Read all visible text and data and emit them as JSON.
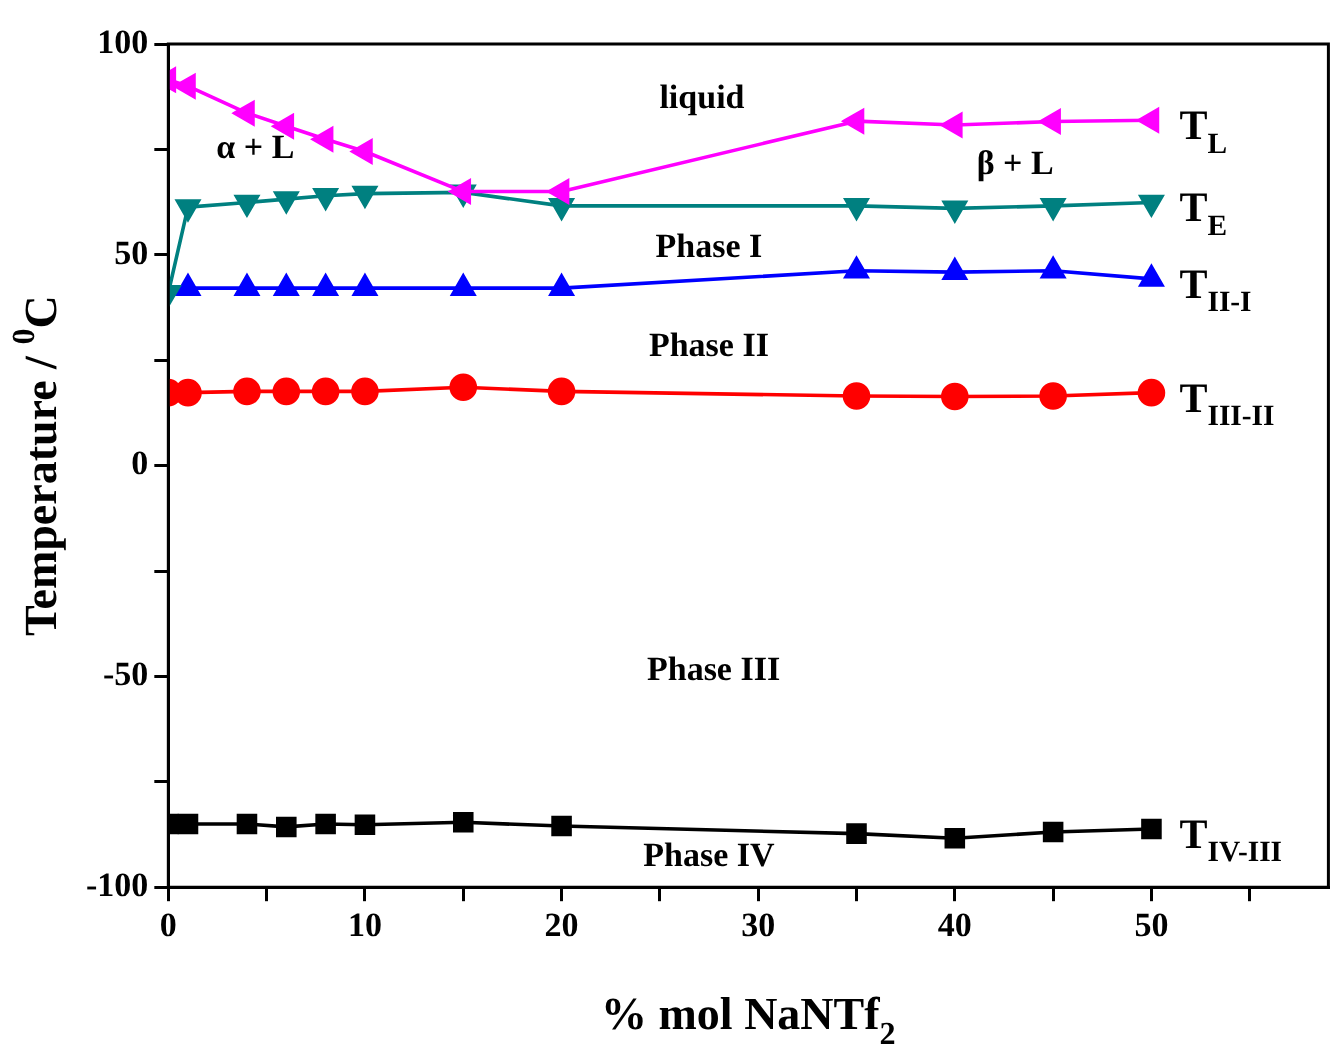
{
  "chart_data": {
    "type": "line",
    "xlabel": "% mol NaNTf$_{2}$",
    "ylabel": "Temperature / $^{0}$C",
    "xlim": [
      0,
      59
    ],
    "xticks": [
      0,
      {
        "value": 5,
        "label": null
      },
      10,
      {
        "value": 15,
        "label": null
      },
      20,
      {
        "value": 25,
        "label": null
      },
      30,
      {
        "value": 35,
        "label": null
      },
      40,
      {
        "value": 45,
        "label": null
      },
      50,
      {
        "value": 55,
        "label": null
      }
    ],
    "ylim": [
      -100,
      100
    ],
    "yticks": [
      -100,
      {
        "value": -75,
        "label": null
      },
      -50,
      {
        "value": -25,
        "label": null
      },
      0,
      {
        "value": 25,
        "label": null
      },
      50,
      {
        "value": 75,
        "label": null
      },
      100
    ],
    "grid": false,
    "legend": false,
    "series": [
      {
        "name": "T$_{L}$",
        "color": "#ff00ff",
        "marker": "triangle",
        "x": [
          0,
          1,
          4,
          6,
          8,
          10,
          15,
          20,
          35,
          40,
          45,
          50
        ],
        "values": [
          91.5,
          90,
          83.6,
          80.5,
          77.4,
          74.5,
          65,
          65,
          81.7,
          80.8,
          81.6,
          81.9
        ]
      },
      {
        "name": "T$_{E}$",
        "color": "#008080",
        "marker": "triangle",
        "x": [
          0,
          1,
          4,
          6,
          8,
          10,
          15,
          20,
          35,
          40,
          45,
          50
        ],
        "values": [
          41,
          61.3,
          62.4,
          63.2,
          64,
          64.5,
          64.8,
          61.6,
          61.6,
          61,
          61.6,
          62.4
        ]
      },
      {
        "name": "T$_{II-I}$",
        "color": "#0000ff",
        "marker": "triangle",
        "x": [
          1,
          4,
          6,
          8,
          10,
          15,
          20,
          35,
          40,
          45,
          50
        ],
        "values": [
          42.1,
          42.1,
          42.1,
          42.1,
          42.1,
          42.1,
          42.1,
          46.2,
          45.9,
          46.2,
          44.3
        ]
      },
      {
        "name": "T$_{III-II}$",
        "color": "#ff0000",
        "marker": "circle",
        "x": [
          0,
          1,
          4,
          6,
          8,
          10,
          15,
          20,
          35,
          40,
          45,
          50
        ],
        "values": [
          17.3,
          17.3,
          17.6,
          17.6,
          17.6,
          17.6,
          18.6,
          17.6,
          16.5,
          16.4,
          16.5,
          17.3
        ]
      },
      {
        "name": "T$_{IV-III}$",
        "color": "#000000",
        "marker": "square",
        "x": [
          0,
          1,
          4,
          6,
          8,
          10,
          15,
          20,
          35,
          40,
          45,
          50
        ],
        "values": [
          -85,
          -85,
          -85,
          -85.7,
          -85,
          -85.2,
          -84.6,
          -85.5,
          -87.3,
          -88.4,
          -86.9,
          -86.2
        ]
      }
    ],
    "annotations": [
      "liquid",
      "α + L",
      "β + L",
      "Phase I",
      "Phase II",
      "Phase III",
      "Phase IV"
    ]
  }
}
